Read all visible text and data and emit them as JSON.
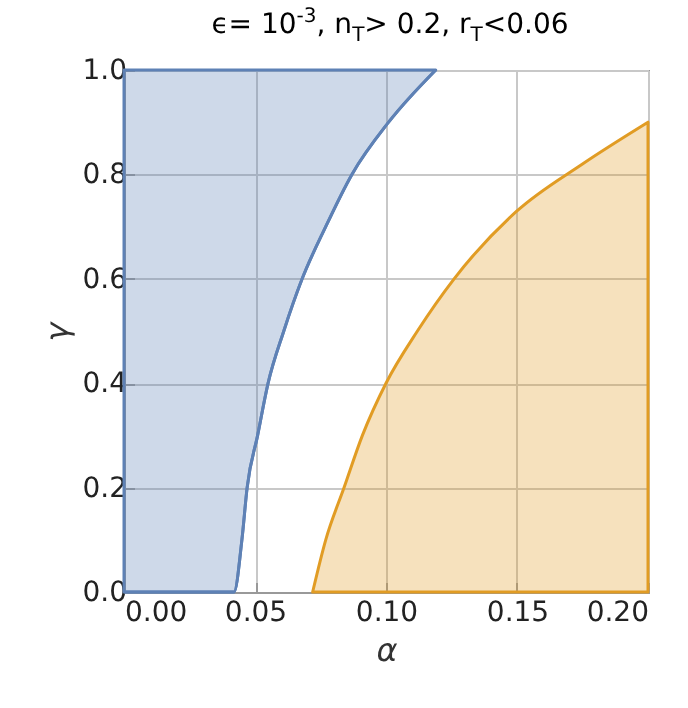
{
  "chart_data": {
    "type": "area",
    "title": "ϵ= 10$^{-3}$,  n$_{T}$> 0.2,  r$_{T}$<0.06",
    "xlabel": "α",
    "ylabel": "γ",
    "series": [
      {
        "type": "line",
        "color": "#5e81b5",
        "x": [
          0,
          0.042,
          0.045,
          0.047,
          0.051,
          0.055,
          0.061,
          0.068,
          0.077,
          0.087,
          0.101,
          0.119
        ],
        "values": [
          0,
          0,
          0.1,
          0.2,
          0.3,
          0.4,
          0.5,
          0.6,
          0.7,
          0.8,
          0.9,
          1
        ],
        "lower": [
          0,
          0,
          0.1,
          0.2,
          0.3,
          0.4,
          0.5,
          0.6,
          0.7,
          0.8,
          0.9,
          1
        ],
        "upper": [
          1,
          1,
          1,
          1,
          1,
          1,
          1,
          1,
          1,
          1,
          1,
          1
        ]
      },
      {
        "color": "#e19c24",
        "x": [
          0.072,
          0.077,
          0.084,
          0.091,
          0.1,
          0.112,
          0.126,
          0.15,
          0.175,
          0.2
        ],
        "values": [
          0,
          0.1,
          0.2,
          0.3,
          0.4,
          0.5,
          0.6,
          0.73,
          0.82,
          0.9
        ]
      }
    ],
    "xlim": [
      0,
      0.2
    ],
    "ylim": [
      0,
      1
    ],
    "xticks": [
      {
        "value": 0,
        "label": "0.00"
      },
      {
        "value": 0.05,
        "label": "0.05"
      },
      {
        "value": 0.1,
        "label": "0.10"
      },
      {
        "value": 0.15,
        "label": "0.15"
      },
      {
        "value": 0.2,
        "label": "0.20"
      }
    ],
    "yticks": [
      {
        "value": 0,
        "label": "0.0"
      },
      {
        "value": 0.2,
        "label": "0.2"
      },
      {
        "value": 0.4,
        "label": "0.4"
      },
      {
        "value": 0.6,
        "label": "0.6"
      },
      {
        "value": 0.8,
        "label": "0.8"
      },
      {
        "value": 1,
        "label": "1.0"
      }
    ],
    "grid": true
  }
}
